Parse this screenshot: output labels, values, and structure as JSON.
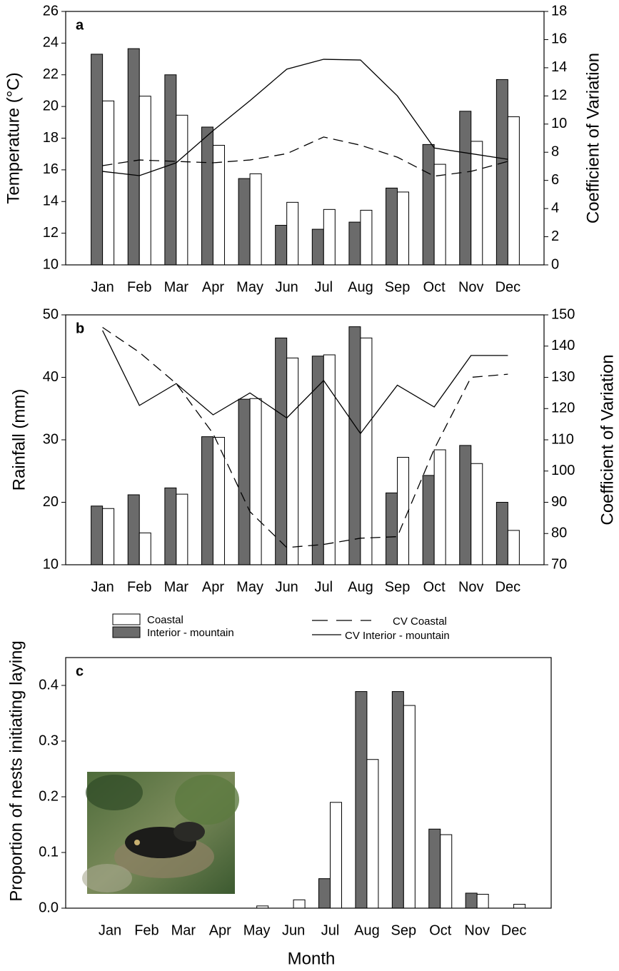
{
  "chart_data": [
    {
      "type": "bar",
      "label": "a",
      "ylabel": "Temperature (°C)",
      "y2label": "Coefficient of Variation",
      "categories": [
        "Jan",
        "Feb",
        "Mar",
        "Apr",
        "May",
        "Jun",
        "Jul",
        "Aug",
        "Sep",
        "Oct",
        "Nov",
        "Dec"
      ],
      "ylim": [
        10,
        26
      ],
      "yticks": [
        10,
        12,
        14,
        16,
        18,
        20,
        22,
        24,
        26
      ],
      "y2lim": [
        0,
        18
      ],
      "y2ticks": [
        0,
        2,
        4,
        6,
        8,
        10,
        12,
        14,
        16,
        18
      ],
      "series": [
        {
          "color": "#6b6b6b",
          "values": [
            23.3,
            23.65,
            22.0,
            18.7,
            15.45,
            12.5,
            12.25,
            12.7,
            14.85,
            17.6,
            19.7,
            21.7
          ]
        },
        {
          "color": "#ffffff",
          "values": [
            20.35,
            20.65,
            19.45,
            17.55,
            15.75,
            13.95,
            13.5,
            13.45,
            14.6,
            16.35,
            17.8,
            19.35
          ]
        },
        {
          "type": "line",
          "axis": "y2",
          "style": "dashed",
          "color": "#000000",
          "values": [
            7.05,
            7.45,
            7.35,
            7.25,
            7.45,
            7.9,
            9.08,
            8.5,
            7.65,
            6.3,
            6.64,
            7.35
          ]
        },
        {
          "type": "line",
          "axis": "y2",
          "style": "solid",
          "color": "#000000",
          "values": [
            6.64,
            6.34,
            7.25,
            9.53,
            11.66,
            13.9,
            14.6,
            14.55,
            12.0,
            8.3,
            7.9,
            7.5
          ]
        }
      ]
    },
    {
      "type": "bar",
      "label": "b",
      "ylabel": "Rainfall (mm)",
      "y2label": "Coefficient of Variation",
      "categories": [
        "Jan",
        "Feb",
        "Mar",
        "Apr",
        "May",
        "Jun",
        "Jul",
        "Aug",
        "Sep",
        "Oct",
        "Nov",
        "Dec"
      ],
      "ylim": [
        10,
        50
      ],
      "yticks": [
        10,
        20,
        30,
        40,
        50
      ],
      "y2lim": [
        70,
        150
      ],
      "y2ticks": [
        70,
        80,
        90,
        100,
        110,
        120,
        130,
        140,
        150
      ],
      "series": [
        {
          "name": "Interior - mountain",
          "color": "#6b6b6b",
          "values": [
            19.4,
            21.2,
            22.3,
            30.5,
            36.5,
            46.3,
            43.4,
            48.1,
            21.5,
            24.3,
            29.1,
            20.0
          ]
        },
        {
          "name": "Coastal",
          "color": "#ffffff",
          "values": [
            19.0,
            15.1,
            21.3,
            30.4,
            36.6,
            43.1,
            43.6,
            46.3,
            27.2,
            28.4,
            26.2,
            15.5
          ]
        },
        {
          "name": "CV Coastal",
          "type": "line",
          "axis": "y2",
          "style": "dashed",
          "color": "#000000",
          "values": [
            146,
            138,
            128,
            112,
            87,
            75.5,
            76.5,
            78.5,
            79,
            107,
            130,
            131
          ]
        },
        {
          "name": "CV Interior - mountain",
          "type": "line",
          "axis": "y2",
          "style": "solid",
          "color": "#000000",
          "values": [
            145,
            121,
            128,
            118,
            125,
            117,
            129,
            112,
            127.5,
            120.5,
            137,
            137
          ]
        }
      ]
    },
    {
      "type": "bar",
      "label": "c",
      "ylabel": "Proportion of nests initiating laying",
      "xlabel": "Month",
      "categories": [
        "Jan",
        "Feb",
        "Mar",
        "Apr",
        "May",
        "Jun",
        "Jul",
        "Aug",
        "Sep",
        "Oct",
        "Nov",
        "Dec"
      ],
      "ylim": [
        0,
        0.45
      ],
      "yticks": [
        {
          "value": 0,
          "label": "0.0"
        },
        0.1,
        0.2,
        0.3,
        0.4
      ],
      "series": [
        {
          "color": "#6b6b6b",
          "values": [
            0,
            0,
            0,
            0,
            0,
            0,
            0.053,
            0.389,
            0.389,
            0.142,
            0.027,
            0
          ]
        },
        {
          "color": "#ffffff",
          "values": [
            0,
            0,
            0,
            0,
            0.004,
            0.015,
            0.19,
            0.267,
            0.364,
            0.132,
            0.025,
            0.007
          ]
        }
      ]
    }
  ]
}
